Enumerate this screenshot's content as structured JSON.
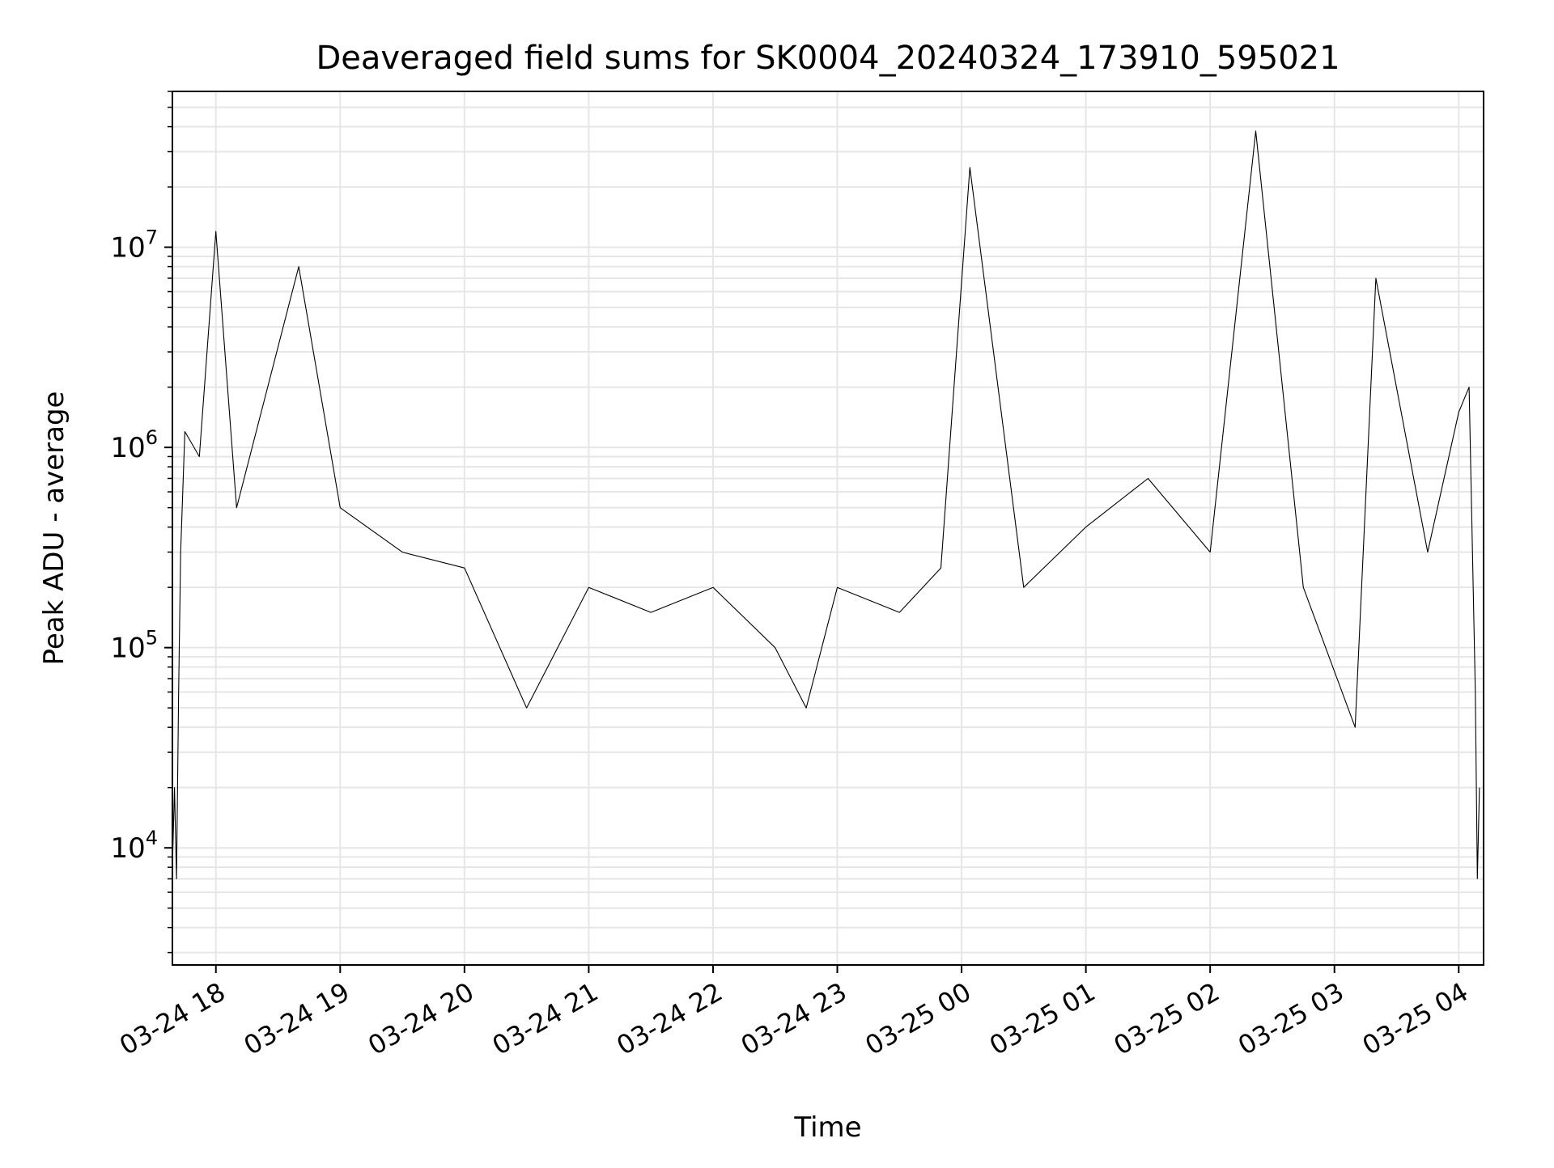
{
  "chart_data": {
    "type": "line",
    "title": "Deaveraged field sums for SK0004_20240324_173910_595021",
    "xlabel": "Time",
    "ylabel": "Peak ADU - average",
    "x_start": "03-24 17:39:10",
    "x_end": "03-25 04:10",
    "xlim": [
      "03-24 17:39",
      "03-25 04:12"
    ],
    "yscale": "log",
    "ylim": [
      2600,
      60000000
    ],
    "grid": true,
    "line_color": "#000000",
    "grid_color": "#e6e6e6",
    "x_tick_labels": [
      "03-24 18",
      "03-24 19",
      "03-24 20",
      "03-24 21",
      "03-24 22",
      "03-24 23",
      "03-25 00",
      "03-25 01",
      "03-25 02",
      "03-25 03",
      "03-25 04"
    ],
    "y_tick_labels": [
      {
        "base": "10",
        "exp": "4",
        "value": 10000
      },
      {
        "base": "10",
        "exp": "5",
        "value": 100000
      },
      {
        "base": "10",
        "exp": "6",
        "value": 1000000
      },
      {
        "base": "10",
        "exp": "7",
        "value": 10000000
      }
    ],
    "series": [
      {
        "points": [
          [
            "03-24 17:39",
            8000
          ],
          [
            "03-24 17:40",
            20000
          ],
          [
            "03-24 17:41",
            7000
          ],
          [
            "03-24 17:42",
            60000
          ],
          [
            "03-24 17:43",
            300000
          ],
          [
            "03-24 17:45",
            1200000
          ],
          [
            "03-24 17:52",
            900000
          ],
          [
            "03-24 18:00",
            12000000
          ],
          [
            "03-24 18:10",
            500000
          ],
          [
            "03-24 18:40",
            8000000
          ],
          [
            "03-24 19:00",
            500000
          ],
          [
            "03-24 19:30",
            300000
          ],
          [
            "03-24 20:00",
            250000
          ],
          [
            "03-24 20:30",
            50000
          ],
          [
            "03-24 21:00",
            200000
          ],
          [
            "03-24 21:30",
            150000
          ],
          [
            "03-24 22:00",
            200000
          ],
          [
            "03-24 22:30",
            100000
          ],
          [
            "03-24 22:45",
            50000
          ],
          [
            "03-24 23:00",
            200000
          ],
          [
            "03-24 23:30",
            150000
          ],
          [
            "03-24 23:50",
            250000
          ],
          [
            "03-25 00:04",
            25000000
          ],
          [
            "03-25 00:30",
            200000
          ],
          [
            "03-25 01:00",
            400000
          ],
          [
            "03-25 01:30",
            700000
          ],
          [
            "03-25 02:00",
            300000
          ],
          [
            "03-25 02:22",
            38000000
          ],
          [
            "03-25 02:45",
            200000
          ],
          [
            "03-25 03:10",
            40000
          ],
          [
            "03-25 03:20",
            7000000
          ],
          [
            "03-25 03:45",
            300000
          ],
          [
            "03-25 04:00",
            1500000
          ],
          [
            "03-25 04:05",
            2000000
          ],
          [
            "03-25 04:08",
            60000
          ],
          [
            "03-25 04:09",
            7000
          ],
          [
            "03-25 04:10",
            20000
          ]
        ]
      }
    ]
  }
}
